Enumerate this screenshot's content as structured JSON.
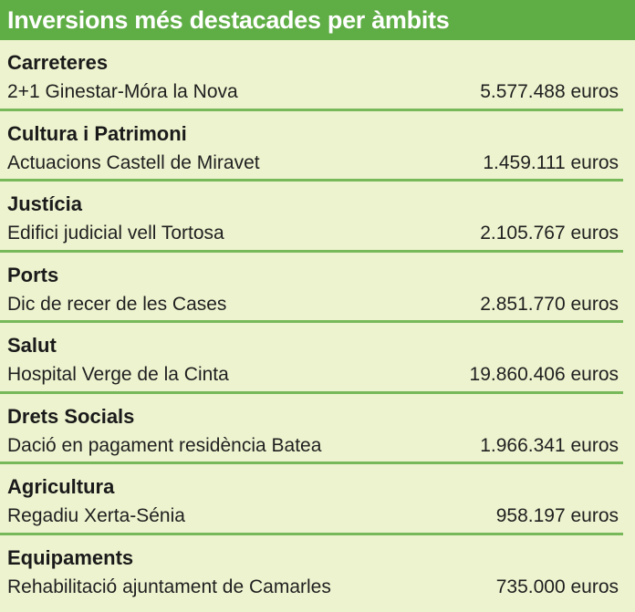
{
  "title": "Inversions més destacades per àmbits",
  "items": [
    {
      "category": "Carreteres",
      "project": "2+1 Ginestar-Móra la Nova",
      "amount": "5.577.488 euros"
    },
    {
      "category": "Cultura i Patrimoni",
      "project": "Actuacions Castell de Miravet",
      "amount": "1.459.111 euros"
    },
    {
      "category": "Justícia",
      "project": "Edifici judicial vell Tortosa",
      "amount": "2.105.767 euros"
    },
    {
      "category": "Ports",
      "project": "Dic de recer de les Cases",
      "amount": "2.851.770 euros"
    },
    {
      "category": "Salut",
      "project": "Hospital Verge de la Cinta",
      "amount": "19.860.406 euros"
    },
    {
      "category": "Drets Socials",
      "project": "Dació en pagament residència Batea",
      "amount": "1.966.341 euros"
    },
    {
      "category": "Agricultura",
      "project": "Regadiu Xerta-Sénia",
      "amount": "958.197 euros"
    },
    {
      "category": "Equipaments",
      "project": "Rehabilitació ajuntament de Camarles",
      "amount": "735.000 euros"
    }
  ],
  "colors": {
    "header_bg": "#5fad45",
    "panel_bg": "#eef3cf",
    "divider": "#76b85a"
  }
}
